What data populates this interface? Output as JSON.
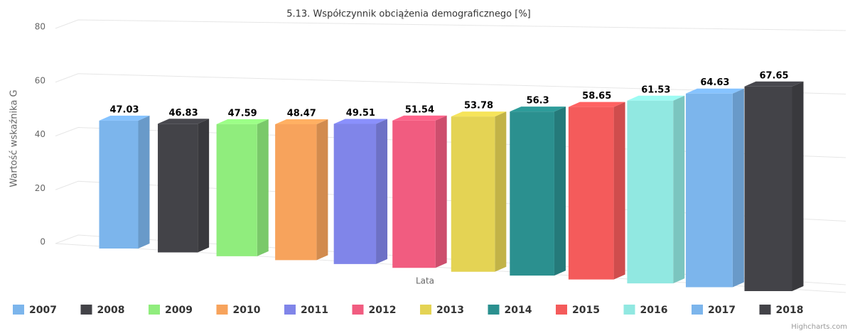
{
  "chart_data": {
    "type": "bar3d",
    "title": "5.13. Współczynnik obciążenia demograficznego [%]",
    "x_label": "Lata",
    "y_label": "Wartość wskaźnika G",
    "ylim": [
      0,
      80
    ],
    "yticks": [
      0,
      20,
      40,
      60,
      80
    ],
    "grid": true,
    "credits": "Highcharts.com",
    "series": [
      {
        "name": "2007",
        "color": "#7cb5ec",
        "values": [
          47.03
        ]
      },
      {
        "name": "2008",
        "color": "#434348",
        "values": [
          46.83
        ]
      },
      {
        "name": "2009",
        "color": "#90ed7d",
        "values": [
          47.59
        ]
      },
      {
        "name": "2010",
        "color": "#f7a35c",
        "values": [
          48.47
        ]
      },
      {
        "name": "2011",
        "color": "#8085e9",
        "values": [
          49.51
        ]
      },
      {
        "name": "2012",
        "color": "#f15c80",
        "values": [
          51.54
        ]
      },
      {
        "name": "2013",
        "color": "#e4d354",
        "values": [
          53.78
        ]
      },
      {
        "name": "2014",
        "color": "#2b908f",
        "values": [
          56.3
        ]
      },
      {
        "name": "2015",
        "color": "#f45b5b",
        "values": [
          58.65
        ]
      },
      {
        "name": "2016",
        "color": "#91e8e1",
        "values": [
          61.53
        ]
      },
      {
        "name": "2017",
        "color": "#7cb5ec",
        "values": [
          64.63
        ]
      },
      {
        "name": "2018",
        "color": "#434348",
        "values": [
          67.65
        ]
      }
    ]
  }
}
